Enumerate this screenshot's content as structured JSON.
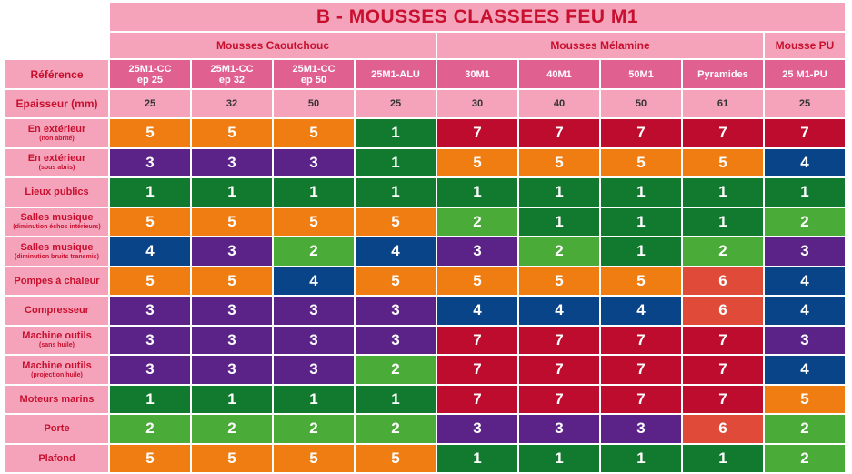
{
  "title": "B - MOUSSES CLASSEES FEU M1",
  "groups": [
    {
      "label": "Mousses Caoutchouc",
      "span": 4
    },
    {
      "label": "Mousses Mélamine",
      "span": 4
    },
    {
      "label": "Mousse PU",
      "span": 1
    }
  ],
  "reference_label": "Référence",
  "references": [
    "25M1-CC\nep 25",
    "25M1-CC\nep 32",
    "25M1-CC\nep 50",
    "25M1-ALU",
    "30M1",
    "40M1",
    "50M1",
    "Pyramides",
    "25 M1-PU"
  ],
  "thickness_label": "Epaisseur (mm)",
  "thickness": [
    "25",
    "32",
    "50",
    "25",
    "30",
    "40",
    "50",
    "61",
    "25"
  ],
  "colors": {
    "1": "#117a2e",
    "2": "#4aab38",
    "3": "#5b2287",
    "4": "#0a4488",
    "5": "#ef7d11",
    "6": "#e04a39",
    "7": "#be0c2e"
  },
  "rows": [
    {
      "label": "En extérieur",
      "sub": "(non abrité)",
      "values": [
        "5",
        "5",
        "5",
        "1",
        "7",
        "7",
        "7",
        "7",
        "7"
      ]
    },
    {
      "label": "En extérieur",
      "sub": "(sous abris)",
      "values": [
        "3",
        "3",
        "3",
        "1",
        "5",
        "5",
        "5",
        "5",
        "4"
      ]
    },
    {
      "label": "Lieux publics",
      "sub": "",
      "values": [
        "1",
        "1",
        "1",
        "1",
        "1",
        "1",
        "1",
        "1",
        "1"
      ]
    },
    {
      "label": "Salles musique",
      "sub": "(diminution échos intérieurs)",
      "values": [
        "5",
        "5",
        "5",
        "5",
        "2",
        "1",
        "1",
        "1",
        "2"
      ]
    },
    {
      "label": "Salles musique",
      "sub": "(diminution bruits transmis)",
      "values": [
        "4",
        "3",
        "2",
        "4",
        "3",
        "2",
        "1",
        "2",
        "3"
      ]
    },
    {
      "label": "Pompes à chaleur",
      "sub": "",
      "values": [
        "5",
        "5",
        "4",
        "5",
        "5",
        "5",
        "5",
        "6",
        "4"
      ]
    },
    {
      "label": "Compresseur",
      "sub": "",
      "values": [
        "3",
        "3",
        "3",
        "3",
        "4",
        "4",
        "4",
        "6",
        "4"
      ]
    },
    {
      "label": "Machine outils",
      "sub": "(sans huile)",
      "values": [
        "3",
        "3",
        "3",
        "3",
        "7",
        "7",
        "7",
        "7",
        "3"
      ]
    },
    {
      "label": "Machine outils",
      "sub": "(projection huile)",
      "values": [
        "3",
        "3",
        "3",
        "2",
        "7",
        "7",
        "7",
        "7",
        "4"
      ]
    },
    {
      "label": "Moteurs marins",
      "sub": "",
      "values": [
        "1",
        "1",
        "1",
        "1",
        "7",
        "7",
        "7",
        "7",
        "5"
      ]
    },
    {
      "label": "Porte",
      "sub": "",
      "values": [
        "2",
        "2",
        "2",
        "2",
        "3",
        "3",
        "3",
        "6",
        "2"
      ]
    },
    {
      "label": "Plafond",
      "sub": "",
      "values": [
        "5",
        "5",
        "5",
        "5",
        "1",
        "1",
        "1",
        "1",
        "2"
      ]
    }
  ]
}
